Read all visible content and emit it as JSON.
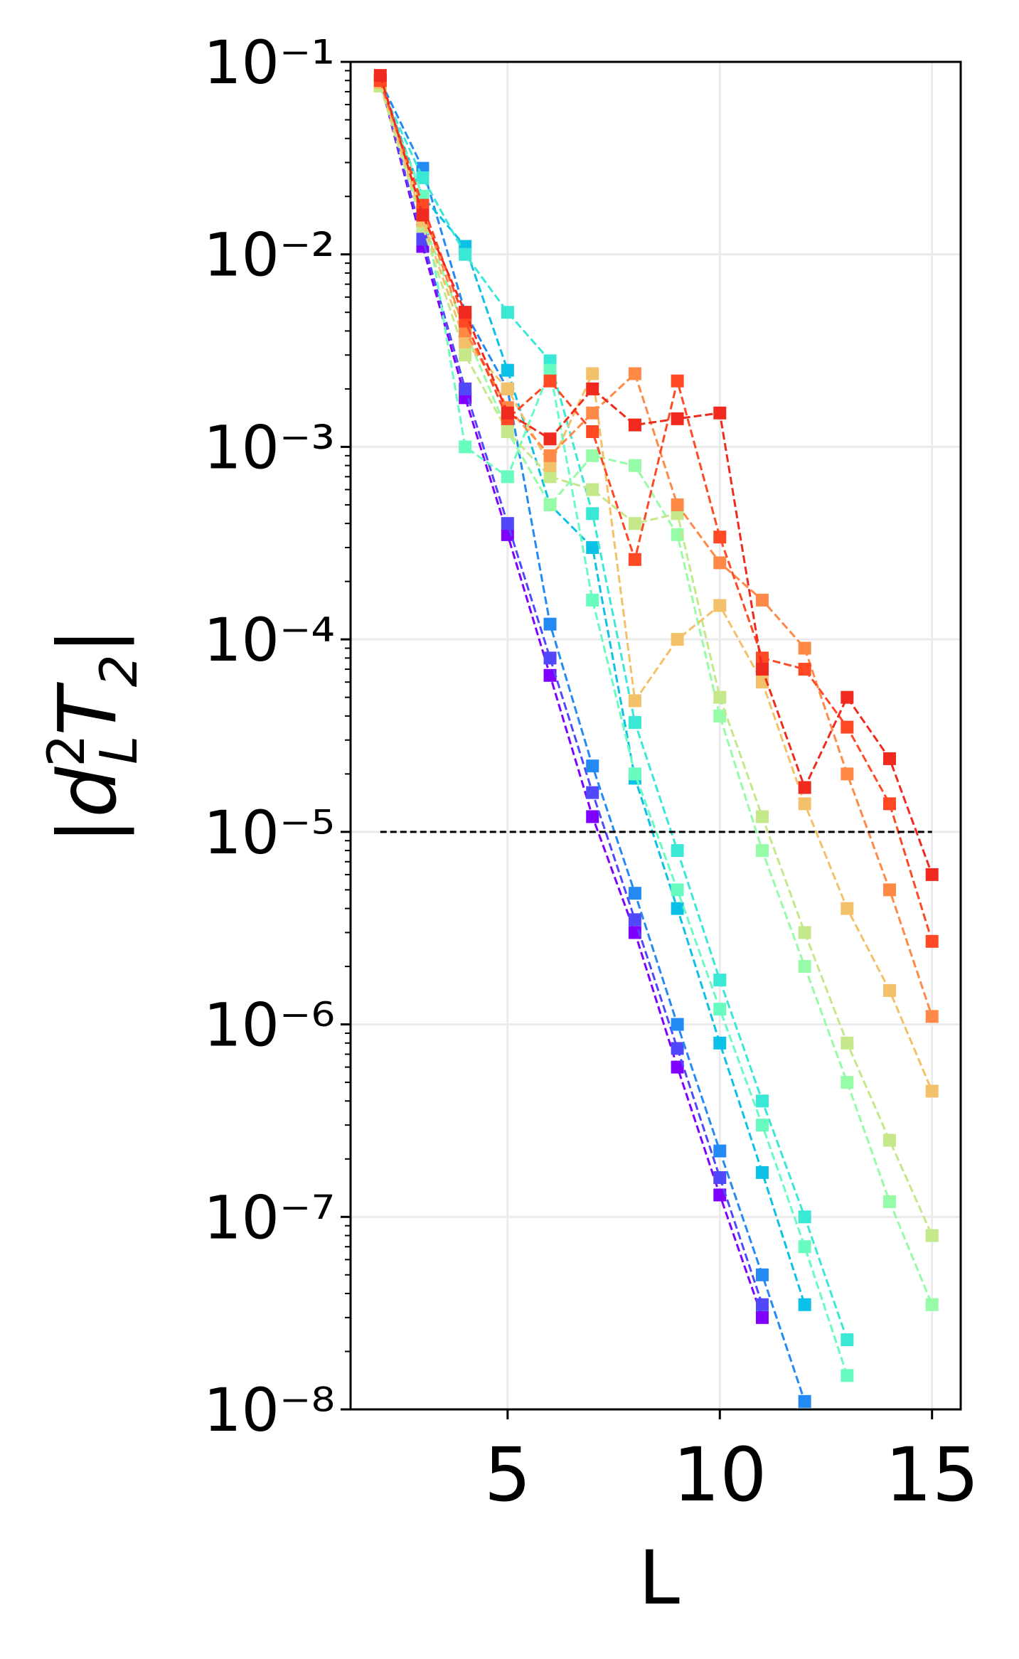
{
  "chart_data": {
    "type": "line",
    "xlabel": "L",
    "ylabel_parts": [
      [
        "|",
        "n"
      ],
      [
        "d",
        "i"
      ],
      [
        "2",
        "sup"
      ],
      [
        "L",
        "sub"
      ],
      [
        "T",
        "i"
      ],
      [
        "2",
        "sub"
      ],
      [
        "|",
        "n"
      ]
    ],
    "log_y": true,
    "grid": true,
    "x": [
      2,
      3,
      4,
      5,
      6,
      7,
      8,
      9,
      10,
      11,
      12,
      13,
      14,
      15
    ],
    "xlim": [
      1.3,
      15.675
    ],
    "xticks": [
      5,
      10,
      15
    ],
    "ylim": [
      1e-08,
      0.1
    ],
    "yticks": [
      {
        "value": 0.1,
        "label": "10⁻¹"
      },
      {
        "value": 0.01,
        "label": "10⁻²"
      },
      {
        "value": 0.001,
        "label": "10⁻³"
      },
      {
        "value": 0.0001,
        "label": "10⁻⁴"
      },
      {
        "value": 1e-05,
        "label": "10⁻⁵"
      },
      {
        "value": 1e-06,
        "label": "10⁻⁶"
      },
      {
        "value": 1e-07,
        "label": "10⁻⁷"
      },
      {
        "value": 1e-08,
        "label": "10⁻⁸"
      }
    ],
    "hline": {
      "y": 1e-05,
      "x": [
        2,
        15
      ],
      "color": "#000000"
    },
    "series": [
      {
        "color": "#8000ff",
        "values": [
          0.08,
          0.011,
          0.0018,
          0.00035,
          6.5e-05,
          1.2e-05,
          3e-06,
          6e-07,
          1.3e-07,
          3e-08,
          null,
          null,
          null,
          null
        ]
      },
      {
        "color": "#5148fc",
        "values": [
          0.08,
          0.012,
          0.002,
          0.0004,
          8e-05,
          1.6e-05,
          3.5e-06,
          7.5e-07,
          1.6e-07,
          3.5e-08,
          null,
          null,
          null,
          null
        ]
      },
      {
        "color": "#238af4",
        "values": [
          0.08,
          0.028,
          0.005,
          0.002,
          0.00012,
          2.2e-05,
          4.8e-06,
          1e-06,
          2.2e-07,
          5e-08,
          1.1e-08,
          null,
          null,
          null
        ]
      },
      {
        "color": "#0cc1e8",
        "values": [
          0.078,
          0.02,
          0.011,
          0.0025,
          0.0005,
          0.0003,
          1.9e-05,
          4e-06,
          8e-07,
          1.7e-07,
          3.5e-08,
          null,
          null,
          null
        ]
      },
      {
        "color": "#3ae8d6",
        "values": [
          0.075,
          0.025,
          0.01,
          0.005,
          0.0028,
          0.00045,
          3.7e-05,
          8e-06,
          1.7e-06,
          4e-07,
          1e-07,
          2.3e-08,
          null,
          null
        ]
      },
      {
        "color": "#68fcc1",
        "values": [
          0.075,
          0.02,
          0.001,
          0.0007,
          0.0025,
          0.00016,
          2e-05,
          5e-06,
          1.2e-06,
          3e-07,
          7e-08,
          1.5e-08,
          null,
          null
        ]
      },
      {
        "color": "#97fca7",
        "values": [
          0.075,
          0.015,
          0.004,
          0.0012,
          0.0005,
          0.0009,
          0.0008,
          0.00035,
          4e-05,
          8e-06,
          2e-06,
          5e-07,
          1.2e-07,
          3.5e-08
        ]
      },
      {
        "color": "#c5e88a",
        "values": [
          0.075,
          0.014,
          0.003,
          0.0012,
          0.0007,
          0.0006,
          0.0004,
          0.00045,
          5e-05,
          1.2e-05,
          3e-06,
          8e-07,
          2.5e-07,
          8e-08
        ]
      },
      {
        "color": "#f3c16a",
        "values": [
          0.078,
          0.015,
          0.0035,
          0.002,
          0.0008,
          0.0024,
          4.8e-05,
          0.0001,
          0.00015,
          6e-05,
          1.4e-05,
          4e-06,
          1.5e-06,
          4.5e-07
        ]
      },
      {
        "color": "#ff8a48",
        "values": [
          0.08,
          0.017,
          0.004,
          0.0016,
          0.0009,
          0.0015,
          0.0024,
          0.0005,
          0.00025,
          0.00016,
          9e-05,
          2e-05,
          5e-06,
          1.1e-06
        ]
      },
      {
        "color": "#ff4824",
        "values": [
          0.08,
          0.018,
          0.0045,
          0.0014,
          0.0022,
          0.0012,
          0.00026,
          0.0022,
          0.00034,
          8e-05,
          7e-05,
          3.5e-05,
          1.4e-05,
          2.7e-06
        ]
      },
      {
        "color": "#f02a1e",
        "values": [
          0.085,
          0.016,
          0.005,
          0.0015,
          0.0011,
          0.002,
          0.0013,
          0.0014,
          0.0015,
          7e-05,
          1.7e-05,
          5e-05,
          2.4e-05,
          6e-06
        ]
      }
    ]
  }
}
